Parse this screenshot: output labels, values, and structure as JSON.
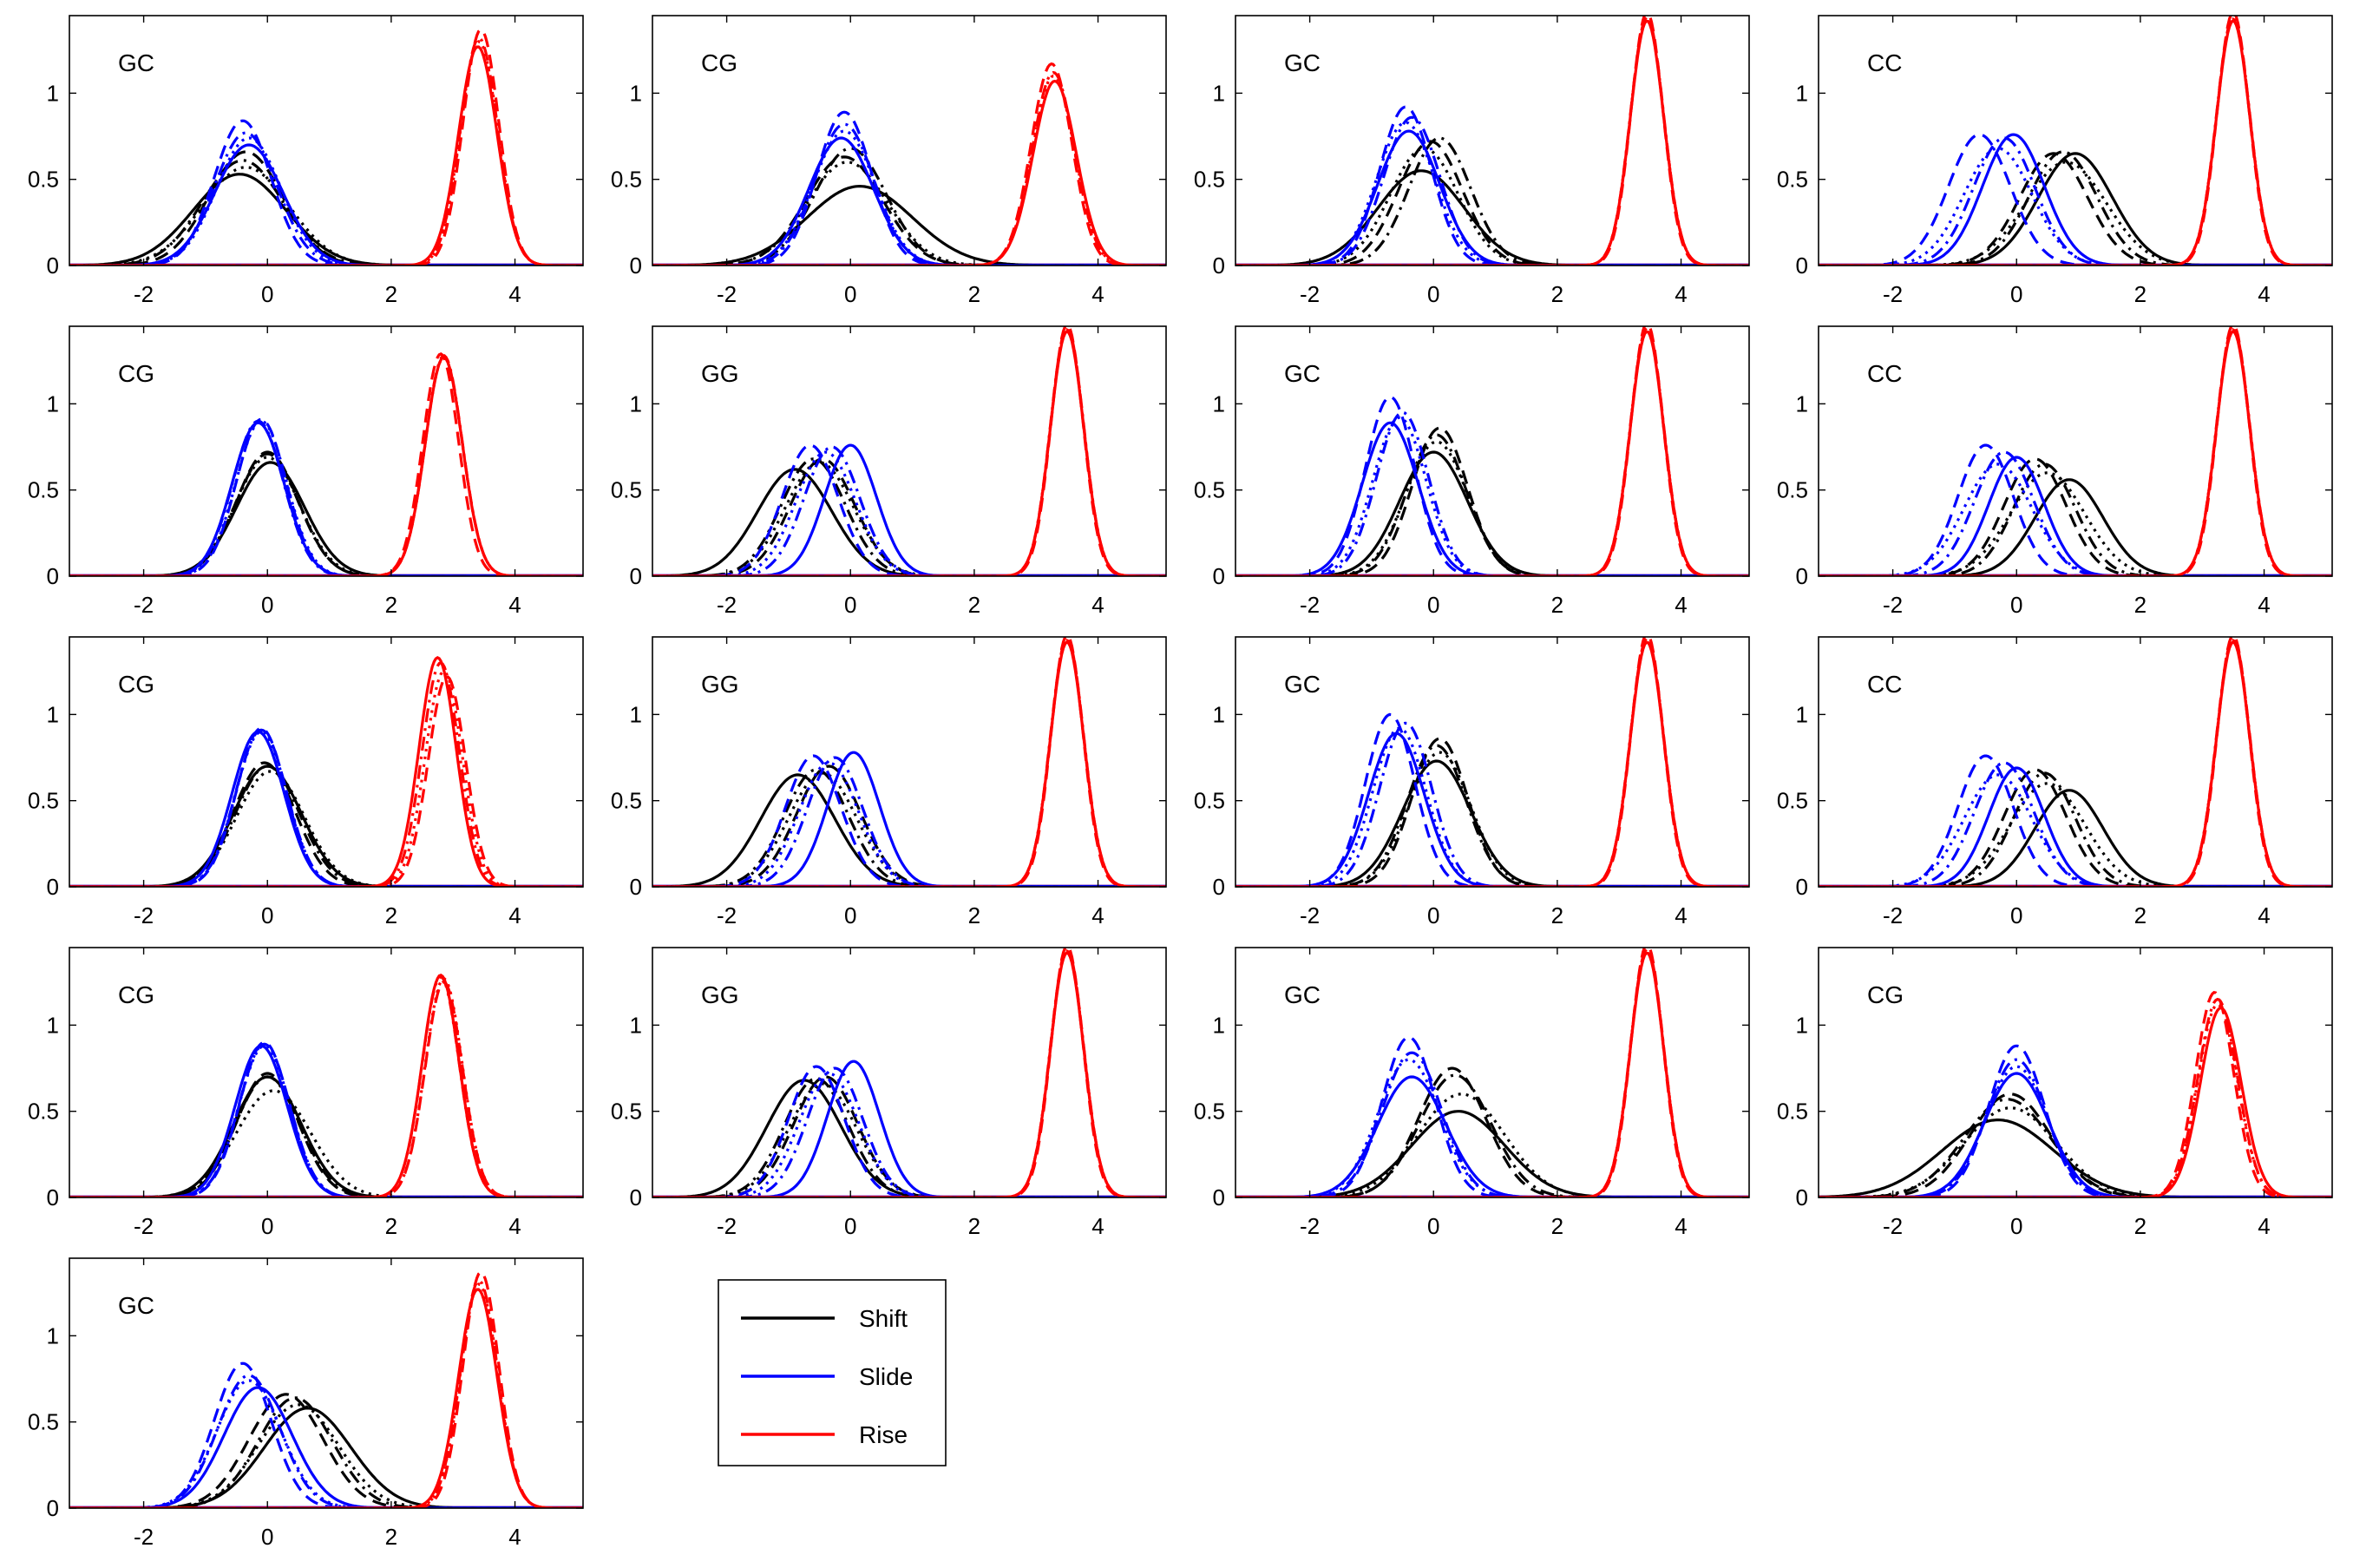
{
  "chart_data": {
    "type": "line",
    "grid": false,
    "xlim": [
      -3.2,
      5.1
    ],
    "ylim": [
      0,
      1.45
    ],
    "xticks": [
      "-2",
      "0",
      "2",
      "4"
    ],
    "yticks": [
      "0",
      "0.5",
      "1"
    ],
    "legend": {
      "placement": "below-last-row",
      "entries": [
        {
          "name": "Shift",
          "color": "#000000"
        },
        {
          "name": "Slide",
          "color": "#0000ff"
        },
        {
          "name": "Rise",
          "color": "#ff0000"
        }
      ]
    },
    "colors": {
      "Shift": "#000000",
      "Slide": "#0000ff",
      "Rise": "#ff0000"
    },
    "styles": [
      "solid",
      "dashed",
      "dashdot",
      "dotted"
    ],
    "panels": [
      {
        "label": "GC",
        "shift": [
          [
            -0.45,
            0.75,
            0.53
          ],
          [
            -0.35,
            0.6,
            0.66
          ],
          [
            -0.4,
            0.65,
            0.61
          ],
          [
            -0.35,
            0.7,
            0.57
          ]
        ],
        "slide": [
          [
            -0.3,
            0.55,
            0.7
          ],
          [
            -0.4,
            0.46,
            0.84
          ],
          [
            -0.35,
            0.5,
            0.77
          ],
          [
            -0.3,
            0.52,
            0.74
          ]
        ],
        "rise": [
          [
            3.4,
            0.31,
            1.27
          ],
          [
            3.45,
            0.29,
            1.37
          ],
          [
            3.42,
            0.3,
            1.32
          ],
          [
            3.42,
            0.3,
            1.3
          ]
        ]
      },
      {
        "label": "CG",
        "shift": [
          [
            0.15,
            0.85,
            0.46
          ],
          [
            -0.1,
            0.62,
            0.63
          ],
          [
            0.0,
            0.58,
            0.68
          ],
          [
            -0.05,
            0.65,
            0.6
          ]
        ],
        "slide": [
          [
            -0.15,
            0.52,
            0.74
          ],
          [
            -0.1,
            0.44,
            0.89
          ],
          [
            -0.1,
            0.48,
            0.82
          ],
          [
            -0.1,
            0.5,
            0.78
          ]
        ],
        "rise": [
          [
            3.3,
            0.35,
            1.07
          ],
          [
            3.25,
            0.33,
            1.17
          ],
          [
            3.28,
            0.34,
            1.12
          ],
          [
            3.28,
            0.34,
            1.1
          ]
        ]
      },
      {
        "label": "GC",
        "shift": [
          [
            -0.2,
            0.7,
            0.55
          ],
          [
            -0.05,
            0.52,
            0.72
          ],
          [
            0.1,
            0.5,
            0.74
          ],
          [
            -0.15,
            0.55,
            0.68
          ]
        ],
        "slide": [
          [
            -0.4,
            0.5,
            0.78
          ],
          [
            -0.45,
            0.42,
            0.92
          ],
          [
            -0.35,
            0.45,
            0.86
          ],
          [
            -0.45,
            0.47,
            0.83
          ]
        ],
        "rise": [
          [
            3.45,
            0.27,
            1.42
          ],
          [
            3.45,
            0.26,
            1.47
          ],
          [
            3.45,
            0.27,
            1.44
          ],
          [
            3.45,
            0.27,
            1.43
          ]
        ]
      },
      {
        "label": "CC",
        "shift": [
          [
            0.95,
            0.6,
            0.65
          ],
          [
            0.6,
            0.55,
            0.65
          ],
          [
            0.75,
            0.55,
            0.66
          ],
          [
            0.8,
            0.65,
            0.6
          ]
        ],
        "slide": [
          [
            -0.05,
            0.5,
            0.76
          ],
          [
            -0.6,
            0.5,
            0.76
          ],
          [
            -0.2,
            0.5,
            0.74
          ],
          [
            -0.3,
            0.55,
            0.68
          ]
        ],
        "rise": [
          [
            3.5,
            0.27,
            1.42
          ],
          [
            3.5,
            0.26,
            1.47
          ],
          [
            3.5,
            0.27,
            1.44
          ],
          [
            3.5,
            0.27,
            1.43
          ]
        ]
      },
      {
        "label": "CG",
        "shift": [
          [
            0.05,
            0.55,
            0.66
          ],
          [
            0.0,
            0.5,
            0.72
          ],
          [
            0.0,
            0.5,
            0.71
          ],
          [
            0.0,
            0.52,
            0.69
          ]
        ],
        "slide": [
          [
            -0.15,
            0.42,
            0.89
          ],
          [
            -0.1,
            0.4,
            0.91
          ],
          [
            -0.15,
            0.41,
            0.9
          ],
          [
            -0.1,
            0.41,
            0.9
          ]
        ],
        "rise": [
          [
            2.85,
            0.3,
            1.27
          ],
          [
            2.8,
            0.29,
            1.29
          ],
          [
            2.85,
            0.3,
            1.28
          ],
          [
            2.85,
            0.3,
            1.27
          ]
        ]
      },
      {
        "label": "GG",
        "shift": [
          [
            -0.9,
            0.6,
            0.62
          ],
          [
            -0.45,
            0.52,
            0.68
          ],
          [
            -0.6,
            0.52,
            0.68
          ],
          [
            -0.5,
            0.55,
            0.66
          ]
        ],
        "slide": [
          [
            0.0,
            0.42,
            0.76
          ],
          [
            -0.65,
            0.45,
            0.76
          ],
          [
            -0.3,
            0.45,
            0.75
          ],
          [
            -0.4,
            0.48,
            0.72
          ]
        ],
        "rise": [
          [
            3.5,
            0.27,
            1.42
          ],
          [
            3.5,
            0.26,
            1.46
          ],
          [
            3.5,
            0.27,
            1.44
          ],
          [
            3.5,
            0.27,
            1.43
          ]
        ]
      },
      {
        "label": "GC",
        "shift": [
          [
            0.0,
            0.55,
            0.72
          ],
          [
            0.1,
            0.45,
            0.86
          ],
          [
            0.05,
            0.48,
            0.82
          ],
          [
            0.05,
            0.5,
            0.78
          ]
        ],
        "slide": [
          [
            -0.7,
            0.45,
            0.89
          ],
          [
            -0.7,
            0.4,
            1.04
          ],
          [
            -0.5,
            0.42,
            0.95
          ],
          [
            -0.55,
            0.43,
            0.92
          ]
        ],
        "rise": [
          [
            3.45,
            0.27,
            1.42
          ],
          [
            3.45,
            0.26,
            1.47
          ],
          [
            3.45,
            0.27,
            1.44
          ],
          [
            3.45,
            0.27,
            1.43
          ]
        ]
      },
      {
        "label": "CC",
        "shift": [
          [
            0.85,
            0.55,
            0.56
          ],
          [
            0.3,
            0.5,
            0.68
          ],
          [
            0.45,
            0.5,
            0.65
          ],
          [
            0.5,
            0.6,
            0.6
          ]
        ],
        "slide": [
          [
            0.0,
            0.45,
            0.69
          ],
          [
            -0.5,
            0.45,
            0.76
          ],
          [
            -0.2,
            0.48,
            0.72
          ],
          [
            -0.3,
            0.55,
            0.65
          ]
        ],
        "rise": [
          [
            3.5,
            0.27,
            1.42
          ],
          [
            3.5,
            0.26,
            1.46
          ],
          [
            3.5,
            0.27,
            1.44
          ],
          [
            3.5,
            0.27,
            1.43
          ]
        ]
      },
      {
        "label": "CG",
        "shift": [
          [
            0.0,
            0.55,
            0.7
          ],
          [
            -0.05,
            0.5,
            0.72
          ],
          [
            0.0,
            0.52,
            0.7
          ],
          [
            0.05,
            0.55,
            0.67
          ]
        ],
        "slide": [
          [
            -0.15,
            0.42,
            0.9
          ],
          [
            -0.1,
            0.4,
            0.92
          ],
          [
            -0.1,
            0.41,
            0.91
          ],
          [
            -0.1,
            0.41,
            0.9
          ]
        ],
        "rise": [
          [
            2.75,
            0.3,
            1.33
          ],
          [
            2.9,
            0.3,
            1.22
          ],
          [
            2.8,
            0.3,
            1.3
          ],
          [
            2.85,
            0.3,
            1.25
          ]
        ]
      },
      {
        "label": "GG",
        "shift": [
          [
            -0.85,
            0.6,
            0.65
          ],
          [
            -0.35,
            0.52,
            0.7
          ],
          [
            -0.55,
            0.52,
            0.68
          ],
          [
            -0.45,
            0.55,
            0.66
          ]
        ],
        "slide": [
          [
            0.05,
            0.42,
            0.78
          ],
          [
            -0.6,
            0.45,
            0.76
          ],
          [
            -0.25,
            0.45,
            0.75
          ],
          [
            -0.35,
            0.48,
            0.72
          ]
        ],
        "rise": [
          [
            3.5,
            0.27,
            1.42
          ],
          [
            3.5,
            0.26,
            1.46
          ],
          [
            3.5,
            0.27,
            1.44
          ],
          [
            3.5,
            0.27,
            1.43
          ]
        ]
      },
      {
        "label": "GC",
        "shift": [
          [
            0.05,
            0.55,
            0.73
          ],
          [
            0.1,
            0.45,
            0.86
          ],
          [
            0.05,
            0.48,
            0.82
          ],
          [
            0.1,
            0.5,
            0.78
          ]
        ],
        "slide": [
          [
            -0.6,
            0.45,
            0.89
          ],
          [
            -0.7,
            0.4,
            1.0
          ],
          [
            -0.45,
            0.42,
            0.95
          ],
          [
            -0.55,
            0.43,
            0.92
          ]
        ],
        "rise": [
          [
            3.45,
            0.27,
            1.42
          ],
          [
            3.45,
            0.26,
            1.47
          ],
          [
            3.45,
            0.27,
            1.44
          ],
          [
            3.45,
            0.27,
            1.43
          ]
        ]
      },
      {
        "label": "CC",
        "shift": [
          [
            0.85,
            0.55,
            0.56
          ],
          [
            0.3,
            0.5,
            0.68
          ],
          [
            0.45,
            0.5,
            0.66
          ],
          [
            0.5,
            0.6,
            0.6
          ]
        ],
        "slide": [
          [
            0.0,
            0.45,
            0.69
          ],
          [
            -0.5,
            0.45,
            0.76
          ],
          [
            -0.2,
            0.48,
            0.72
          ],
          [
            -0.3,
            0.55,
            0.65
          ]
        ],
        "rise": [
          [
            3.5,
            0.27,
            1.42
          ],
          [
            3.5,
            0.26,
            1.46
          ],
          [
            3.5,
            0.27,
            1.44
          ],
          [
            3.5,
            0.27,
            1.43
          ]
        ]
      },
      {
        "label": "CG",
        "shift": [
          [
            0.0,
            0.55,
            0.7
          ],
          [
            0.0,
            0.5,
            0.72
          ],
          [
            0.0,
            0.52,
            0.7
          ],
          [
            0.1,
            0.6,
            0.62
          ]
        ],
        "slide": [
          [
            -0.1,
            0.42,
            0.88
          ],
          [
            -0.05,
            0.4,
            0.9
          ],
          [
            -0.05,
            0.41,
            0.89
          ],
          [
            -0.05,
            0.41,
            0.88
          ]
        ],
        "rise": [
          [
            2.8,
            0.3,
            1.29
          ],
          [
            2.85,
            0.3,
            1.25
          ],
          [
            2.8,
            0.3,
            1.28
          ],
          [
            2.85,
            0.3,
            1.27
          ]
        ]
      },
      {
        "label": "GG",
        "shift": [
          [
            -0.75,
            0.6,
            0.68
          ],
          [
            -0.4,
            0.52,
            0.7
          ],
          [
            -0.55,
            0.52,
            0.69
          ],
          [
            -0.45,
            0.55,
            0.66
          ]
        ],
        "slide": [
          [
            0.05,
            0.42,
            0.79
          ],
          [
            -0.55,
            0.45,
            0.76
          ],
          [
            -0.25,
            0.45,
            0.75
          ],
          [
            -0.35,
            0.48,
            0.72
          ]
        ],
        "rise": [
          [
            3.5,
            0.27,
            1.42
          ],
          [
            3.5,
            0.26,
            1.46
          ],
          [
            3.5,
            0.27,
            1.44
          ],
          [
            3.5,
            0.27,
            1.43
          ]
        ]
      },
      {
        "label": "GC",
        "shift": [
          [
            0.4,
            0.75,
            0.5
          ],
          [
            0.3,
            0.55,
            0.75
          ],
          [
            0.35,
            0.58,
            0.71
          ],
          [
            0.45,
            0.7,
            0.6
          ]
        ],
        "slide": [
          [
            -0.35,
            0.55,
            0.7
          ],
          [
            -0.4,
            0.43,
            0.93
          ],
          [
            -0.35,
            0.48,
            0.84
          ],
          [
            -0.4,
            0.5,
            0.8
          ]
        ],
        "rise": [
          [
            3.45,
            0.27,
            1.42
          ],
          [
            3.45,
            0.26,
            1.47
          ],
          [
            3.45,
            0.27,
            1.44
          ],
          [
            3.45,
            0.27,
            1.43
          ]
        ]
      },
      {
        "label": "CG",
        "shift": [
          [
            -0.3,
            0.9,
            0.45
          ],
          [
            -0.1,
            0.65,
            0.6
          ],
          [
            -0.15,
            0.7,
            0.57
          ],
          [
            -0.1,
            0.75,
            0.52
          ]
        ],
        "slide": [
          [
            0.0,
            0.52,
            0.72
          ],
          [
            0.0,
            0.45,
            0.88
          ],
          [
            0.0,
            0.48,
            0.8
          ],
          [
            0.0,
            0.5,
            0.76
          ]
        ],
        "rise": [
          [
            3.3,
            0.33,
            1.1
          ],
          [
            3.2,
            0.31,
            1.19
          ],
          [
            3.25,
            0.32,
            1.15
          ],
          [
            3.25,
            0.32,
            1.12
          ]
        ]
      },
      {
        "label": "GC",
        "shift": [
          [
            0.65,
            0.7,
            0.58
          ],
          [
            0.3,
            0.6,
            0.66
          ],
          [
            0.45,
            0.6,
            0.64
          ],
          [
            0.5,
            0.65,
            0.6
          ]
        ],
        "slide": [
          [
            -0.15,
            0.55,
            0.7
          ],
          [
            -0.4,
            0.46,
            0.84
          ],
          [
            -0.3,
            0.5,
            0.77
          ],
          [
            -0.3,
            0.52,
            0.74
          ]
        ],
        "rise": [
          [
            3.4,
            0.31,
            1.27
          ],
          [
            3.45,
            0.29,
            1.37
          ],
          [
            3.42,
            0.3,
            1.32
          ],
          [
            3.42,
            0.3,
            1.3
          ]
        ]
      }
    ]
  }
}
